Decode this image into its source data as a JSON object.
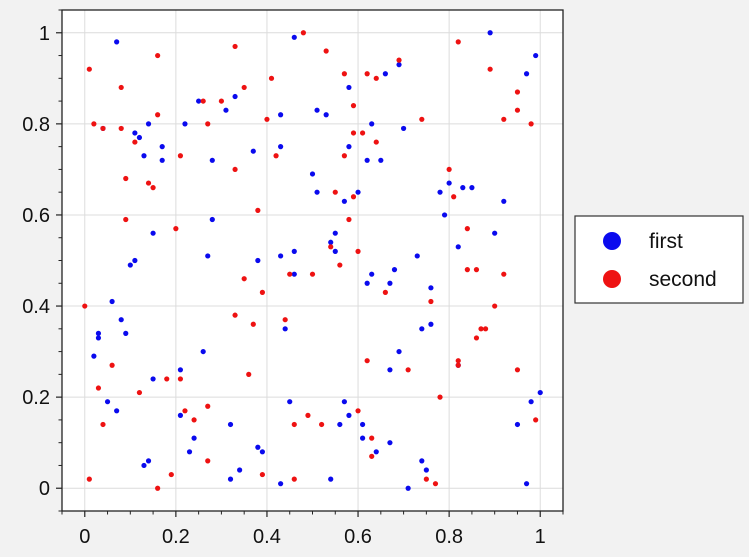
{
  "chart_data": {
    "type": "scatter",
    "xlim": [
      -0.05,
      1.05
    ],
    "ylim": [
      -0.05,
      1.05
    ],
    "xticks": [
      "0",
      "0.2",
      "0.4",
      "0.6",
      "0.8",
      "1"
    ],
    "yticks": [
      "0",
      "0.2",
      "0.4",
      "0.6",
      "0.8",
      "1"
    ],
    "grid": true,
    "legend_position": "right",
    "series": [
      {
        "name": "first",
        "color": "#0a0aee",
        "points": [
          [
            0.02,
            0.29
          ],
          [
            0.03,
            0.34
          ],
          [
            0.03,
            0.33
          ],
          [
            0.04,
            0.79
          ],
          [
            0.05,
            0.19
          ],
          [
            0.06,
            0.41
          ],
          [
            0.07,
            0.98
          ],
          [
            0.07,
            0.17
          ],
          [
            0.08,
            0.37
          ],
          [
            0.09,
            0.34
          ],
          [
            0.1,
            0.49
          ],
          [
            0.11,
            0.78
          ],
          [
            0.11,
            0.5
          ],
          [
            0.12,
            0.77
          ],
          [
            0.13,
            0.73
          ],
          [
            0.13,
            0.05
          ],
          [
            0.14,
            0.8
          ],
          [
            0.14,
            0.06
          ],
          [
            0.15,
            0.24
          ],
          [
            0.15,
            0.56
          ],
          [
            0.17,
            0.75
          ],
          [
            0.17,
            0.72
          ],
          [
            0.21,
            0.16
          ],
          [
            0.21,
            0.26
          ],
          [
            0.22,
            0.8
          ],
          [
            0.23,
            0.08
          ],
          [
            0.24,
            0.11
          ],
          [
            0.25,
            0.85
          ],
          [
            0.26,
            0.3
          ],
          [
            0.27,
            0.51
          ],
          [
            0.28,
            0.59
          ],
          [
            0.28,
            0.72
          ],
          [
            0.31,
            0.83
          ],
          [
            0.32,
            0.02
          ],
          [
            0.32,
            0.14
          ],
          [
            0.33,
            0.86
          ],
          [
            0.34,
            0.04
          ],
          [
            0.37,
            0.74
          ],
          [
            0.38,
            0.5
          ],
          [
            0.38,
            0.09
          ],
          [
            0.39,
            0.08
          ],
          [
            0.43,
            0.82
          ],
          [
            0.43,
            0.75
          ],
          [
            0.43,
            0.51
          ],
          [
            0.43,
            0.01
          ],
          [
            0.44,
            0.35
          ],
          [
            0.45,
            0.19
          ],
          [
            0.46,
            0.52
          ],
          [
            0.46,
            0.99
          ],
          [
            0.46,
            0.47
          ],
          [
            0.5,
            0.69
          ],
          [
            0.51,
            0.83
          ],
          [
            0.51,
            0.65
          ],
          [
            0.53,
            0.82
          ],
          [
            0.54,
            0.54
          ],
          [
            0.54,
            0.02
          ],
          [
            0.55,
            0.52
          ],
          [
            0.55,
            0.56
          ],
          [
            0.56,
            0.14
          ],
          [
            0.57,
            0.63
          ],
          [
            0.57,
            0.19
          ],
          [
            0.58,
            0.16
          ],
          [
            0.58,
            0.88
          ],
          [
            0.58,
            0.75
          ],
          [
            0.6,
            0.65
          ],
          [
            0.61,
            0.14
          ],
          [
            0.61,
            0.11
          ],
          [
            0.62,
            0.72
          ],
          [
            0.63,
            0.8
          ],
          [
            0.62,
            0.45
          ],
          [
            0.63,
            0.47
          ],
          [
            0.64,
            0.08
          ],
          [
            0.65,
            0.72
          ],
          [
            0.66,
            0.91
          ],
          [
            0.67,
            0.45
          ],
          [
            0.67,
            0.26
          ],
          [
            0.67,
            0.1
          ],
          [
            0.68,
            0.48
          ],
          [
            0.69,
            0.3
          ],
          [
            0.69,
            0.93
          ],
          [
            0.7,
            0.79
          ],
          [
            0.71,
            0.0
          ],
          [
            0.73,
            0.51
          ],
          [
            0.74,
            0.35
          ],
          [
            0.74,
            0.06
          ],
          [
            0.75,
            0.04
          ],
          [
            0.76,
            0.44
          ],
          [
            0.76,
            0.36
          ],
          [
            0.78,
            0.65
          ],
          [
            0.79,
            0.6
          ],
          [
            0.8,
            0.67
          ],
          [
            0.82,
            0.53
          ],
          [
            0.82,
            0.27
          ],
          [
            0.83,
            0.66
          ],
          [
            0.85,
            0.66
          ],
          [
            0.89,
            1.0
          ],
          [
            0.9,
            0.56
          ],
          [
            0.92,
            0.63
          ],
          [
            0.95,
            0.14
          ],
          [
            0.97,
            0.91
          ],
          [
            0.97,
            0.01
          ],
          [
            0.98,
            0.19
          ],
          [
            0.99,
            0.95
          ],
          [
            1.0,
            0.21
          ]
        ]
      },
      {
        "name": "second",
        "color": "#ee1212",
        "points": [
          [
            0.0,
            0.4
          ],
          [
            0.01,
            0.92
          ],
          [
            0.01,
            0.02
          ],
          [
            0.02,
            0.8
          ],
          [
            0.03,
            0.22
          ],
          [
            0.04,
            0.79
          ],
          [
            0.04,
            0.14
          ],
          [
            0.06,
            0.27
          ],
          [
            0.08,
            0.79
          ],
          [
            0.08,
            0.88
          ],
          [
            0.09,
            0.68
          ],
          [
            0.09,
            0.59
          ],
          [
            0.11,
            0.76
          ],
          [
            0.12,
            0.21
          ],
          [
            0.14,
            0.67
          ],
          [
            0.15,
            0.66
          ],
          [
            0.16,
            0.82
          ],
          [
            0.16,
            0.95
          ],
          [
            0.16,
            0.0
          ],
          [
            0.18,
            0.24
          ],
          [
            0.19,
            0.03
          ],
          [
            0.2,
            0.57
          ],
          [
            0.21,
            0.24
          ],
          [
            0.21,
            0.73
          ],
          [
            0.22,
            0.17
          ],
          [
            0.24,
            0.15
          ],
          [
            0.26,
            0.85
          ],
          [
            0.27,
            0.18
          ],
          [
            0.27,
            0.8
          ],
          [
            0.27,
            0.06
          ],
          [
            0.3,
            0.85
          ],
          [
            0.33,
            0.97
          ],
          [
            0.33,
            0.7
          ],
          [
            0.33,
            0.38
          ],
          [
            0.35,
            0.88
          ],
          [
            0.35,
            0.46
          ],
          [
            0.36,
            0.25
          ],
          [
            0.37,
            0.36
          ],
          [
            0.38,
            0.61
          ],
          [
            0.39,
            0.43
          ],
          [
            0.39,
            0.03
          ],
          [
            0.4,
            0.81
          ],
          [
            0.41,
            0.9
          ],
          [
            0.42,
            0.73
          ],
          [
            0.44,
            0.37
          ],
          [
            0.45,
            0.47
          ],
          [
            0.46,
            0.02
          ],
          [
            0.46,
            0.14
          ],
          [
            0.48,
            1.0
          ],
          [
            0.49,
            0.16
          ],
          [
            0.5,
            0.47
          ],
          [
            0.52,
            0.14
          ],
          [
            0.53,
            0.96
          ],
          [
            0.54,
            0.53
          ],
          [
            0.55,
            0.65
          ],
          [
            0.56,
            0.49
          ],
          [
            0.57,
            0.73
          ],
          [
            0.57,
            0.91
          ],
          [
            0.58,
            0.59
          ],
          [
            0.59,
            0.64
          ],
          [
            0.59,
            0.78
          ],
          [
            0.59,
            0.84
          ],
          [
            0.6,
            0.52
          ],
          [
            0.6,
            0.17
          ],
          [
            0.61,
            0.78
          ],
          [
            0.62,
            0.91
          ],
          [
            0.62,
            0.28
          ],
          [
            0.63,
            0.11
          ],
          [
            0.63,
            0.07
          ],
          [
            0.64,
            0.9
          ],
          [
            0.64,
            0.76
          ],
          [
            0.66,
            0.43
          ],
          [
            0.69,
            0.94
          ],
          [
            0.71,
            0.26
          ],
          [
            0.74,
            0.81
          ],
          [
            0.75,
            0.02
          ],
          [
            0.76,
            0.41
          ],
          [
            0.77,
            0.01
          ],
          [
            0.78,
            0.2
          ],
          [
            0.8,
            0.7
          ],
          [
            0.81,
            0.64
          ],
          [
            0.82,
            0.98
          ],
          [
            0.82,
            0.28
          ],
          [
            0.82,
            0.27
          ],
          [
            0.84,
            0.57
          ],
          [
            0.84,
            0.48
          ],
          [
            0.86,
            0.33
          ],
          [
            0.86,
            0.48
          ],
          [
            0.87,
            0.35
          ],
          [
            0.88,
            0.35
          ],
          [
            0.89,
            0.92
          ],
          [
            0.9,
            0.4
          ],
          [
            0.92,
            0.81
          ],
          [
            0.92,
            0.47
          ],
          [
            0.95,
            0.26
          ],
          [
            0.95,
            0.83
          ],
          [
            0.95,
            0.87
          ],
          [
            0.98,
            0.8
          ],
          [
            0.99,
            0.15
          ]
        ]
      }
    ]
  }
}
